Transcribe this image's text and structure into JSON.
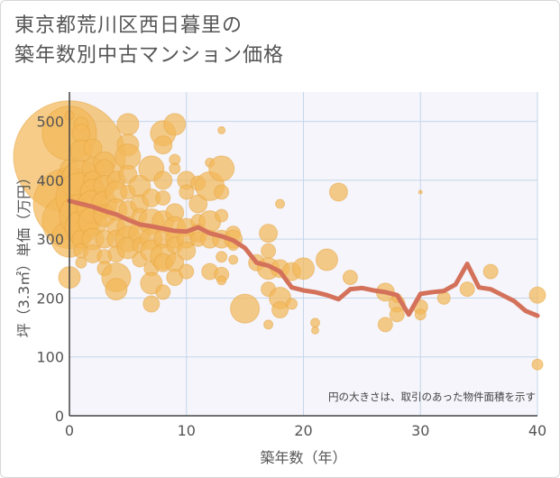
{
  "title_lines": [
    "東京都荒川区西日暮里の",
    "築年数別中古マンション価格"
  ],
  "note": "円の大きさは、取引のあった物件面積を示す",
  "colors": {
    "bubble_fill": "#f2b85a",
    "bubble_stroke": "#e6a33e",
    "line": "#d4715a",
    "plot_bg": "#f5f5fb",
    "grid": "#c5d6ea"
  },
  "chart_data": {
    "type": "scatter",
    "xlabel": "築年数（年）",
    "ylabel": "坪（3.3㎡）単価（万円）",
    "xlim": [
      0,
      40
    ],
    "ylim": [
      0,
      550
    ],
    "xticks": [
      0,
      10,
      20,
      30,
      40
    ],
    "yticks": [
      0,
      100,
      200,
      300,
      400,
      500
    ],
    "grid": true,
    "series": [
      {
        "kind": "bubble",
        "points": [
          [
            0,
            440,
            62
          ],
          [
            0,
            480,
            30
          ],
          [
            0,
            360,
            40
          ],
          [
            0,
            330,
            30
          ],
          [
            0,
            300,
            20
          ],
          [
            0,
            235,
            12
          ],
          [
            0,
            400,
            15
          ],
          [
            0,
            420,
            10
          ],
          [
            0,
            510,
            5
          ],
          [
            1,
            495,
            8
          ],
          [
            1,
            480,
            10
          ],
          [
            1,
            450,
            12
          ],
          [
            1,
            400,
            22
          ],
          [
            1,
            370,
            28
          ],
          [
            1,
            340,
            24
          ],
          [
            1,
            320,
            18
          ],
          [
            1,
            300,
            10
          ],
          [
            1,
            280,
            8
          ],
          [
            1,
            260,
            6
          ],
          [
            2,
            455,
            10
          ],
          [
            2,
            420,
            12
          ],
          [
            2,
            400,
            10
          ],
          [
            2,
            380,
            14
          ],
          [
            2,
            355,
            18
          ],
          [
            2,
            330,
            16
          ],
          [
            2,
            300,
            12
          ],
          [
            2,
            275,
            10
          ],
          [
            3,
            430,
            12
          ],
          [
            3,
            420,
            10
          ],
          [
            3,
            390,
            12
          ],
          [
            3,
            360,
            14
          ],
          [
            3,
            340,
            12
          ],
          [
            3,
            300,
            10
          ],
          [
            3,
            270,
            8
          ],
          [
            3,
            250,
            8
          ],
          [
            4,
            400,
            10
          ],
          [
            4,
            380,
            12
          ],
          [
            4,
            350,
            12
          ],
          [
            4,
            320,
            10
          ],
          [
            4,
            300,
            10
          ],
          [
            4,
            275,
            9
          ],
          [
            4,
            235,
            16
          ],
          [
            4,
            215,
            12
          ],
          [
            5,
            495,
            12
          ],
          [
            5,
            460,
            12
          ],
          [
            5,
            440,
            14
          ],
          [
            5,
            410,
            10
          ],
          [
            5,
            380,
            8
          ],
          [
            5,
            350,
            10
          ],
          [
            5,
            320,
            12
          ],
          [
            5,
            300,
            14
          ],
          [
            5,
            285,
            12
          ],
          [
            6,
            390,
            12
          ],
          [
            6,
            360,
            10
          ],
          [
            6,
            340,
            8
          ],
          [
            6,
            310,
            12
          ],
          [
            6,
            290,
            8
          ],
          [
            6,
            265,
            8
          ],
          [
            7,
            420,
            14
          ],
          [
            7,
            370,
            10
          ],
          [
            7,
            330,
            14
          ],
          [
            7,
            300,
            12
          ],
          [
            7,
            280,
            12
          ],
          [
            7,
            250,
            8
          ],
          [
            7,
            225,
            12
          ],
          [
            7,
            190,
            9
          ],
          [
            8,
            480,
            14
          ],
          [
            8,
            460,
            10
          ],
          [
            8,
            400,
            10
          ],
          [
            8,
            370,
            8
          ],
          [
            8,
            330,
            12
          ],
          [
            8,
            300,
            10
          ],
          [
            8,
            270,
            14
          ],
          [
            8,
            260,
            10
          ],
          [
            8,
            210,
            8
          ],
          [
            9,
            495,
            12
          ],
          [
            9,
            435,
            6
          ],
          [
            9,
            420,
            6
          ],
          [
            9,
            345,
            10
          ],
          [
            9,
            320,
            12
          ],
          [
            9,
            300,
            10
          ],
          [
            9,
            290,
            9
          ],
          [
            9,
            260,
            10
          ],
          [
            9,
            235,
            9
          ],
          [
            10,
            400,
            10
          ],
          [
            10,
            380,
            8
          ],
          [
            10,
            320,
            10
          ],
          [
            10,
            300,
            10
          ],
          [
            10,
            280,
            10
          ],
          [
            10,
            245,
            8
          ],
          [
            11,
            395,
            8
          ],
          [
            11,
            360,
            10
          ],
          [
            11,
            330,
            8
          ],
          [
            11,
            310,
            10
          ],
          [
            11,
            300,
            8
          ],
          [
            12,
            430,
            5
          ],
          [
            12,
            390,
            16
          ],
          [
            12,
            330,
            12
          ],
          [
            12,
            300,
            10
          ],
          [
            12,
            245,
            9
          ],
          [
            13,
            485,
            4
          ],
          [
            13,
            420,
            14
          ],
          [
            13,
            380,
            8
          ],
          [
            13,
            340,
            7
          ],
          [
            13,
            300,
            10
          ],
          [
            13,
            270,
            6
          ],
          [
            13,
            240,
            8
          ],
          [
            13,
            230,
            5
          ],
          [
            14,
            310,
            8
          ],
          [
            14,
            300,
            10
          ],
          [
            14,
            290,
            6
          ],
          [
            14,
            265,
            5
          ],
          [
            15,
            182,
            16
          ],
          [
            16,
            260,
            9
          ],
          [
            17,
            310,
            10
          ],
          [
            17,
            280,
            8
          ],
          [
            17,
            250,
            12
          ],
          [
            17,
            215,
            8
          ],
          [
            17,
            155,
            5
          ],
          [
            18,
            360,
            5
          ],
          [
            18,
            250,
            10
          ],
          [
            18,
            200,
            12
          ],
          [
            18,
            180,
            9
          ],
          [
            19,
            245,
            10
          ],
          [
            19,
            190,
            6
          ],
          [
            20,
            250,
            12
          ],
          [
            21,
            158,
            5
          ],
          [
            21,
            145,
            4
          ],
          [
            22,
            265,
            12
          ],
          [
            23,
            380,
            10
          ],
          [
            24,
            235,
            8
          ],
          [
            27,
            210,
            10
          ],
          [
            27,
            155,
            8
          ],
          [
            28,
            190,
            9
          ],
          [
            28,
            172,
            8
          ],
          [
            28,
            200,
            5
          ],
          [
            30,
            380,
            2
          ],
          [
            30,
            185,
            8
          ],
          [
            30,
            172,
            6
          ],
          [
            32,
            200,
            7
          ],
          [
            34,
            215,
            8
          ],
          [
            36,
            245,
            8
          ],
          [
            40,
            205,
            9
          ],
          [
            40,
            87,
            6
          ]
        ]
      },
      {
        "kind": "line",
        "name": "",
        "x": [
          0,
          1,
          2,
          3,
          4,
          5,
          6,
          7,
          8,
          9,
          10,
          11,
          12,
          13,
          14,
          15,
          16,
          17,
          18,
          19,
          20,
          21,
          22,
          23,
          24,
          25,
          26,
          27,
          28,
          29,
          30,
          31,
          32,
          33,
          34,
          35,
          36,
          37,
          38,
          39,
          40
        ],
        "y": [
          365,
          360,
          355,
          348,
          342,
          333,
          325,
          322,
          318,
          314,
          313,
          320,
          310,
          305,
          298,
          285,
          260,
          255,
          245,
          218,
          213,
          210,
          205,
          198,
          215,
          217,
          213,
          210,
          205,
          172,
          207,
          210,
          212,
          223,
          258,
          218,
          215,
          205,
          195,
          178,
          170
        ]
      }
    ]
  }
}
